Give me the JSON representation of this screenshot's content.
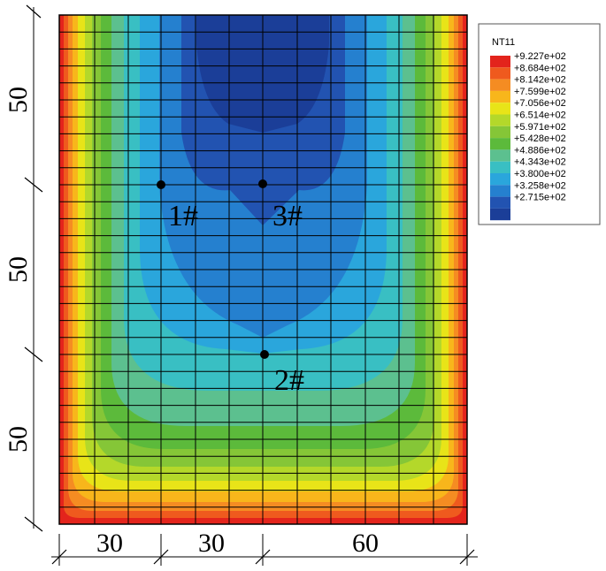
{
  "legend": {
    "title": "NT11",
    "colors": [
      "#e3241c",
      "#ef5a1e",
      "#f58c22",
      "#f8b61b",
      "#e8e418",
      "#b4d82a",
      "#85c637",
      "#5cba3b",
      "#5cc08f",
      "#39bfc3",
      "#2aa6dc",
      "#2580cf",
      "#2253b1",
      "#1b3e98"
    ],
    "labels": [
      "+9.227e+02",
      "+8.684e+02",
      "+8.142e+02",
      "+7.599e+02",
      "+7.056e+02",
      "+6.514e+02",
      "+5.971e+02",
      "+5.428e+02",
      "+4.886e+02",
      "+4.343e+02",
      "+3.800e+02",
      "+3.258e+02",
      "+2.715e+02"
    ]
  },
  "dimensions": {
    "vertical": [
      "50",
      "50",
      "50"
    ],
    "horizontal": [
      "30",
      "30",
      "60"
    ]
  },
  "points": [
    {
      "label": "1#"
    },
    {
      "label": "3#"
    },
    {
      "label": "2#"
    }
  ]
}
